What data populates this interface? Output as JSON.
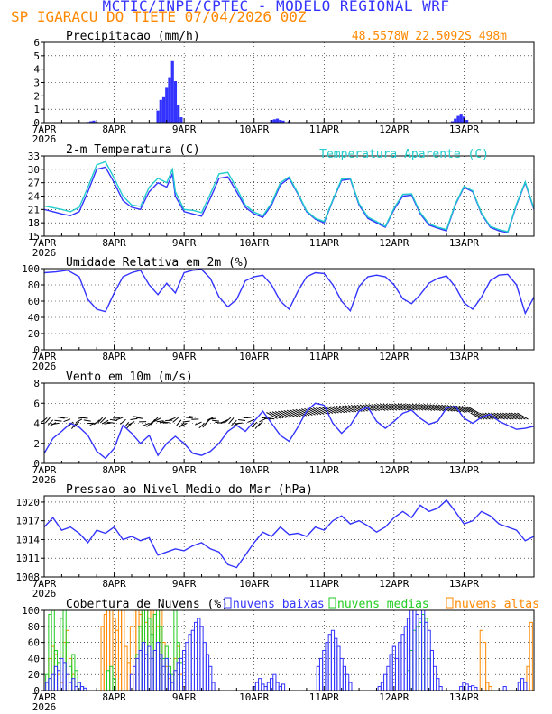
{
  "header": {
    "title": "MCTIC/INPE/CPTEC - MODELO REGIONAL WRF",
    "subtitle": "SP IGARACU DO TIETE   07/04/2026 00Z"
  },
  "x_axis": {
    "start": "2026-04-07T00:00",
    "end": "2026-04-14T00:00",
    "ticks": [
      {
        "date": "2026-04-07",
        "label": "7APR",
        "year": "2026"
      },
      {
        "date": "2026-04-08",
        "label": "8APR",
        "year": ""
      },
      {
        "date": "2026-04-09",
        "label": "9APR",
        "year": ""
      },
      {
        "date": "2026-04-10",
        "label": "10APR",
        "year": ""
      },
      {
        "date": "2026-04-11",
        "label": "11APR",
        "year": ""
      },
      {
        "date": "2026-04-12",
        "label": "12APR",
        "year": ""
      },
      {
        "date": "2026-04-13",
        "label": "13APR",
        "year": ""
      }
    ]
  },
  "colors": {
    "blue": "#3333ff",
    "cyan": "#22cccc",
    "green": "#22cc22",
    "orange": "#ff8800",
    "black": "#000000"
  },
  "chart_data": [
    {
      "type": "bar",
      "title": "Precipitacao (mm/h)",
      "location": "48.5578W 22.5092S 498m",
      "ylim": [
        0,
        6
      ],
      "yticks": [
        0,
        1,
        2,
        3,
        4,
        5,
        6
      ],
      "x_hours": [
        15,
        16,
        17,
        18,
        39,
        40,
        41,
        42,
        43,
        44,
        45,
        46,
        47,
        78,
        79,
        80,
        81,
        82,
        84,
        140,
        141,
        142,
        143,
        144,
        145
      ],
      "values": [
        0.05,
        0.1,
        0.15,
        0.05,
        0.9,
        1.7,
        1.9,
        2.6,
        3.4,
        4.6,
        3.1,
        1.3,
        0.4,
        0.2,
        0.25,
        0.3,
        0.2,
        0.15,
        0.1,
        0.1,
        0.3,
        0.5,
        0.6,
        0.45,
        0.2
      ],
      "series_color": "#3333ff"
    },
    {
      "type": "line",
      "title": "2-m Temperatura (C)",
      "legend_label": "Temperatura Aparente (C)",
      "ylim": [
        15,
        33
      ],
      "yticks": [
        15,
        18,
        21,
        24,
        27,
        30,
        33
      ],
      "series": [
        {
          "color": "#3333ff",
          "x_hours": [
            0,
            6,
            9,
            12,
            15,
            18,
            21,
            24,
            27,
            30,
            33,
            36,
            39,
            42,
            44,
            45,
            48,
            51,
            54,
            57,
            60,
            63,
            66,
            69,
            72,
            75,
            78,
            81,
            84,
            87,
            90,
            93,
            96,
            99,
            102,
            105,
            108,
            111,
            114,
            117,
            120,
            123,
            126,
            129,
            132,
            135,
            138,
            141,
            144,
            147,
            150,
            153,
            156,
            159,
            162,
            165,
            168
          ],
          "values": [
            21,
            20,
            19.6,
            20.5,
            25,
            30,
            30.5,
            27,
            23,
            21.5,
            21,
            25,
            27,
            26,
            29,
            24,
            20.5,
            20,
            19.5,
            23.5,
            28,
            28.3,
            25,
            21.5,
            20,
            19.2,
            22,
            26.5,
            28,
            24.5,
            20.5,
            18.8,
            18,
            23,
            27.5,
            27.8,
            22,
            19,
            18,
            17,
            21,
            24,
            24.2,
            20,
            17.5,
            16.8,
            16.2,
            22,
            26,
            25,
            20,
            17,
            16.2,
            15.8,
            22,
            27,
            21
          ]
        },
        {
          "color": "#22cccc",
          "x_hours": [
            0,
            6,
            9,
            12,
            15,
            18,
            21,
            24,
            27,
            30,
            33,
            36,
            39,
            42,
            44,
            45,
            48,
            51,
            54,
            57,
            60,
            63,
            66,
            69,
            72,
            75,
            78,
            81,
            84,
            87,
            90,
            93,
            96,
            99,
            102,
            105,
            108,
            111,
            114,
            117,
            120,
            123,
            126,
            129,
            132,
            135,
            138,
            141,
            144,
            147,
            150,
            153,
            156,
            159,
            162,
            165,
            168
          ],
          "values": [
            21.8,
            21,
            20.5,
            21.5,
            26,
            31,
            31.7,
            28,
            24,
            22,
            21.7,
            26,
            28,
            27,
            30,
            25,
            21,
            20.8,
            20.3,
            24.5,
            29,
            29.3,
            25.8,
            22,
            20.4,
            19.6,
            22.4,
            27,
            28.3,
            24.7,
            20.7,
            19,
            18.3,
            23.2,
            27.8,
            28,
            22.3,
            19.3,
            18.3,
            17.2,
            21.3,
            24.4,
            24.5,
            20.3,
            17.8,
            17,
            16.5,
            22.2,
            26.2,
            25.2,
            20.2,
            17.2,
            16.5,
            16,
            22.2,
            27.2,
            21.2
          ]
        }
      ]
    },
    {
      "type": "line",
      "title": "Umidade Relativa em 2m (%)",
      "ylim": [
        0,
        100
      ],
      "yticks": [
        0,
        20,
        40,
        60,
        80,
        100
      ],
      "series": [
        {
          "color": "#3333ff",
          "x_hours": [
            0,
            4,
            8,
            12,
            15,
            18,
            21,
            24,
            27,
            30,
            33,
            36,
            39,
            42,
            45,
            48,
            51,
            54,
            57,
            60,
            63,
            66,
            69,
            72,
            75,
            78,
            81,
            84,
            87,
            90,
            93,
            96,
            99,
            102,
            105,
            108,
            111,
            114,
            117,
            120,
            123,
            126,
            129,
            132,
            135,
            138,
            141,
            144,
            147,
            150,
            153,
            156,
            159,
            162,
            165,
            168
          ],
          "values": [
            95,
            96,
            98,
            90,
            62,
            50,
            47,
            70,
            90,
            95,
            98,
            80,
            68,
            82,
            70,
            95,
            98,
            99,
            88,
            65,
            53,
            62,
            85,
            90,
            92,
            80,
            60,
            50,
            72,
            90,
            95,
            94,
            80,
            60,
            48,
            78,
            90,
            92,
            90,
            80,
            63,
            57,
            68,
            82,
            88,
            91,
            78,
            58,
            50,
            65,
            85,
            92,
            93,
            80,
            45,
            65
          ]
        }
      ]
    },
    {
      "type": "line",
      "title": "Vento em 10m (m/s)",
      "ylim": [
        0,
        8
      ],
      "yticks": [
        0,
        2,
        4,
        6,
        8
      ],
      "wind_barbs": "black",
      "series": [
        {
          "color": "#3333ff",
          "x_hours": [
            0,
            3,
            6,
            9,
            12,
            15,
            18,
            21,
            24,
            27,
            30,
            33,
            36,
            39,
            42,
            45,
            48,
            51,
            54,
            57,
            60,
            63,
            66,
            69,
            72,
            75,
            78,
            81,
            84,
            87,
            90,
            93,
            96,
            99,
            102,
            105,
            108,
            111,
            114,
            117,
            120,
            123,
            126,
            129,
            132,
            135,
            138,
            141,
            144,
            147,
            150,
            153,
            156,
            159,
            162,
            165,
            168
          ],
          "values": [
            1,
            2.5,
            3.2,
            4,
            3.6,
            2.8,
            1.2,
            0.5,
            1.5,
            3.8,
            3,
            2,
            2.8,
            0.8,
            2,
            2.7,
            2,
            1,
            0.8,
            1.2,
            2,
            3.2,
            3.8,
            3.2,
            4.2,
            5.2,
            4,
            2.8,
            2.2,
            3.6,
            5.2,
            6,
            5.8,
            4,
            3,
            3.8,
            5.2,
            5.6,
            4.2,
            3.5,
            4.2,
            5,
            5.3,
            4.5,
            3.9,
            4.2,
            5.5,
            5.7,
            4.5,
            4,
            4.6,
            4.9,
            4.2,
            3.8,
            3.4,
            3.5,
            3.7
          ]
        }
      ]
    },
    {
      "type": "line",
      "title": "Pressao ao Nivel Medio do Mar (hPa)",
      "ylim": [
        1008,
        1021
      ],
      "yticks": [
        1008,
        1011,
        1014,
        1017,
        1020
      ],
      "series": [
        {
          "color": "#3333ff",
          "x_hours": [
            0,
            3,
            6,
            9,
            12,
            15,
            18,
            21,
            24,
            27,
            30,
            33,
            36,
            39,
            42,
            45,
            48,
            51,
            54,
            57,
            60,
            63,
            66,
            69,
            72,
            75,
            78,
            81,
            84,
            87,
            90,
            93,
            96,
            99,
            102,
            105,
            108,
            111,
            114,
            117,
            120,
            123,
            126,
            129,
            132,
            135,
            138,
            141,
            144,
            147,
            150,
            153,
            156,
            159,
            162,
            165,
            168
          ],
          "values": [
            1016,
            1017.5,
            1015.5,
            1016,
            1015,
            1013.5,
            1015.5,
            1015,
            1016,
            1014,
            1014.5,
            1013.8,
            1014.3,
            1011.5,
            1012,
            1012.5,
            1012.2,
            1013,
            1013.5,
            1012.5,
            1012,
            1010,
            1009.5,
            1011.5,
            1013.5,
            1015.2,
            1014.5,
            1016,
            1014.8,
            1015,
            1014.5,
            1016,
            1015.5,
            1017,
            1017.8,
            1016.5,
            1017,
            1016.2,
            1015.2,
            1016,
            1017.5,
            1018.5,
            1017.5,
            1019.5,
            1018.5,
            1019,
            1020.3,
            1018.5,
            1016.5,
            1017,
            1018.5,
            1017.8,
            1016.5,
            1016,
            1015.5,
            1013.8,
            1014.5
          ]
        }
      ]
    },
    {
      "type": "bar",
      "title": "Cobertura de Nuvens (%)",
      "legend": [
        "nuvens baixas",
        "nuvens medias",
        "nuvens altas"
      ],
      "legend_colors": [
        "#3333ff",
        "#22cc22",
        "#ff8800"
      ],
      "ylim": [
        0,
        100
      ],
      "yticks": [
        0,
        20,
        40,
        60,
        80,
        100
      ],
      "series": [
        {
          "name": "nuvens altas",
          "color": "#ff8800",
          "x_hours": [
            2,
            3,
            4,
            5,
            6,
            7,
            8,
            9,
            10,
            20,
            21,
            22,
            23,
            24,
            25,
            26,
            27,
            28,
            29,
            30,
            31,
            32,
            33,
            34,
            35,
            36,
            37,
            38,
            39,
            40,
            41,
            42,
            43,
            44,
            45,
            46,
            47,
            48,
            150,
            151,
            152,
            153,
            166,
            167
          ],
          "values": [
            40,
            55,
            45,
            20,
            10,
            60,
            75,
            40,
            20,
            80,
            95,
            100,
            100,
            90,
            75,
            100,
            100,
            55,
            35,
            80,
            100,
            100,
            95,
            100,
            85,
            100,
            100,
            95,
            80,
            100,
            60,
            30,
            15,
            10,
            40,
            55,
            20,
            5,
            75,
            60,
            10,
            5,
            30,
            85
          ]
        },
        {
          "name": "nuvens medias",
          "color": "#22cc22",
          "x_hours": [
            1,
            2,
            3,
            4,
            5,
            6,
            7,
            8,
            9,
            10,
            11,
            12,
            13,
            22,
            23,
            24,
            32,
            33,
            34,
            35,
            36,
            37,
            38,
            39,
            40,
            41,
            42,
            43,
            44,
            45,
            46,
            47,
            125,
            126,
            127,
            128,
            129,
            130,
            131,
            132
          ],
          "values": [
            20,
            95,
            100,
            50,
            35,
            90,
            100,
            60,
            30,
            45,
            25,
            10,
            5,
            25,
            30,
            15,
            45,
            80,
            100,
            100,
            90,
            70,
            95,
            100,
            80,
            40,
            55,
            30,
            20,
            100,
            60,
            35,
            25,
            50,
            75,
            80,
            85,
            95,
            90,
            40
          ]
        },
        {
          "name": "nuvens baixas",
          "color": "#3333ff",
          "x_hours": [
            1,
            2,
            3,
            4,
            5,
            6,
            7,
            8,
            9,
            10,
            11,
            12,
            13,
            14,
            30,
            31,
            32,
            33,
            34,
            35,
            36,
            37,
            38,
            39,
            40,
            41,
            42,
            43,
            44,
            45,
            46,
            47,
            48,
            49,
            50,
            51,
            52,
            53,
            54,
            55,
            56,
            57,
            58,
            72,
            73,
            74,
            75,
            76,
            77,
            78,
            79,
            80,
            81,
            82,
            94,
            95,
            96,
            97,
            98,
            99,
            100,
            101,
            102,
            103,
            104,
            105,
            115,
            116,
            117,
            118,
            119,
            120,
            121,
            122,
            123,
            124,
            125,
            126,
            127,
            128,
            129,
            130,
            131,
            132,
            133,
            134,
            135,
            136,
            143,
            144,
            145,
            146,
            147,
            148,
            158,
            163,
            164,
            165
          ],
          "values": [
            10,
            15,
            20,
            30,
            25,
            40,
            35,
            20,
            10,
            15,
            5,
            10,
            5,
            3,
            20,
            30,
            40,
            50,
            60,
            45,
            55,
            40,
            50,
            60,
            45,
            30,
            40,
            20,
            10,
            25,
            35,
            40,
            50,
            60,
            70,
            75,
            85,
            90,
            80,
            60,
            45,
            30,
            10,
            5,
            10,
            15,
            8,
            5,
            10,
            15,
            20,
            10,
            5,
            8,
            30,
            40,
            50,
            60,
            70,
            75,
            65,
            55,
            40,
            30,
            20,
            10,
            5,
            10,
            20,
            30,
            45,
            55,
            40,
            60,
            70,
            80,
            90,
            100,
            100,
            95,
            90,
            100,
            85,
            75,
            50,
            30,
            15,
            5,
            5,
            10,
            8,
            5,
            6,
            4,
            5,
            10,
            15,
            10
          ]
        }
      ]
    }
  ]
}
